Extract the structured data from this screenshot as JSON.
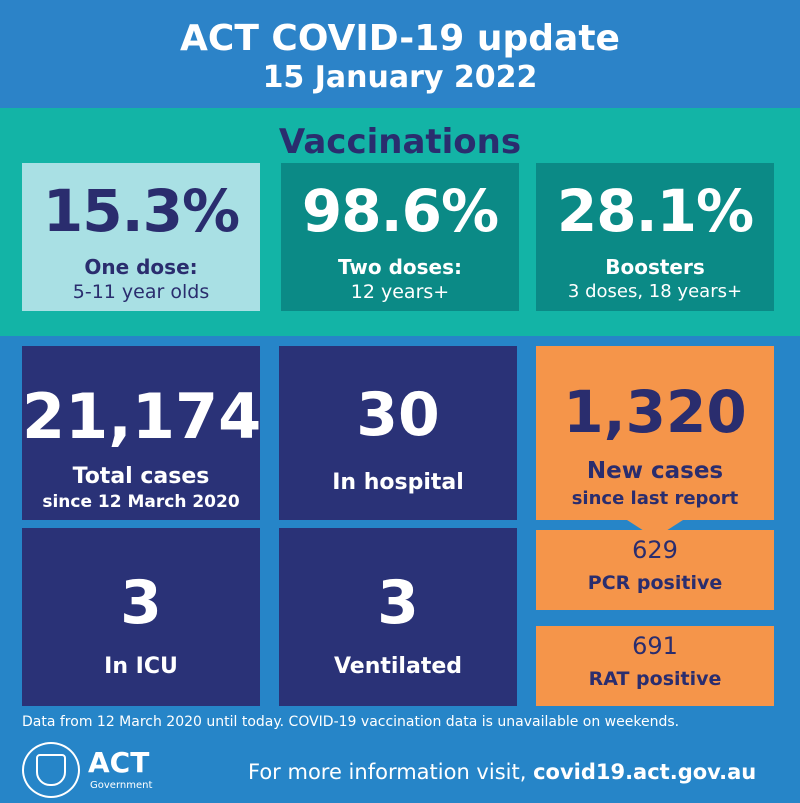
{
  "header": {
    "title": "ACT COVID-19 update",
    "date": "15 January 2022"
  },
  "vaccinations": {
    "heading": "Vaccinations",
    "cards": [
      {
        "value": "15.3%",
        "line1": "One dose:",
        "line2": "5-11 year olds"
      },
      {
        "value": "98.6%",
        "line1": "Two doses:",
        "line2": "12 years+"
      },
      {
        "value": "28.1%",
        "line1": "Boosters",
        "line2": "3 doses, 18 years+"
      }
    ]
  },
  "stats": {
    "total": {
      "value": "21,174",
      "label": "Total cases",
      "sub": "since 12 March 2020"
    },
    "hospital": {
      "value": "30",
      "label": "In hospital"
    },
    "icu": {
      "value": "3",
      "label": "In ICU"
    },
    "ventilated": {
      "value": "3",
      "label": "Ventilated"
    },
    "new_cases": {
      "value": "1,320",
      "label": "New cases",
      "sub": "since last report"
    },
    "pcr": {
      "value": "629",
      "label": "PCR positive"
    },
    "rat": {
      "value": "691",
      "label": "RAT positive"
    }
  },
  "footer": {
    "note": "Data from 12 March 2020 until today.  COVID-19 vaccination data is unavailable on weekends.",
    "logo_text": "ACT",
    "logo_sub": "Government",
    "info_prefix": "For more information visit, ",
    "info_link": "covid19.act.gov.au"
  },
  "colors": {
    "header_blue": "#2c83c8",
    "teal": "#13b4a6",
    "navy": "#2a3277",
    "orange": "#f5954a"
  }
}
